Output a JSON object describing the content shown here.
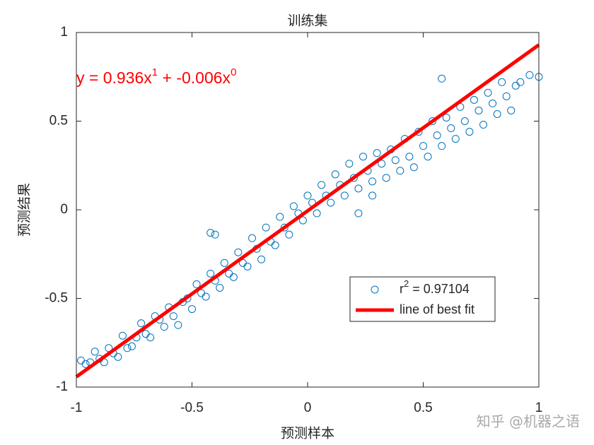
{
  "chart_data": {
    "type": "scatter",
    "title": "训练集",
    "xlabel": "预测样本",
    "ylabel": "预测结果",
    "xlim": [
      -1,
      1
    ],
    "ylim": [
      -1,
      1
    ],
    "xticks": [
      -1,
      -0.5,
      0,
      0.5,
      1
    ],
    "yticks": [
      -1,
      -0.5,
      0,
      0.5,
      1
    ],
    "annotation_parts": [
      "y = 0.936x",
      "1",
      " + -0.006x",
      "0"
    ],
    "annotation_color": "#ff0000",
    "legend_position": "lower right",
    "watermark": "知乎 @机器之语",
    "series": [
      {
        "type": "scatter",
        "name_parts": [
          "r",
          "2",
          " = 0.97104"
        ],
        "color": "#0072bd",
        "x": [
          -0.98,
          -0.96,
          -0.94,
          -0.92,
          -0.9,
          -0.88,
          -0.86,
          -0.84,
          -0.82,
          -0.8,
          -0.78,
          -0.76,
          -0.74,
          -0.72,
          -0.7,
          -0.68,
          -0.66,
          -0.64,
          -0.62,
          -0.6,
          -0.58,
          -0.56,
          -0.54,
          -0.52,
          -0.5,
          -0.48,
          -0.46,
          -0.44,
          -0.42,
          -0.4,
          -0.38,
          -0.36,
          -0.34,
          -0.32,
          -0.3,
          -0.28,
          -0.26,
          -0.24,
          -0.22,
          -0.2,
          -0.18,
          -0.16,
          -0.14,
          -0.12,
          -0.1,
          -0.08,
          -0.06,
          -0.04,
          -0.02,
          0,
          0.02,
          0.04,
          0.06,
          0.08,
          0.1,
          0.12,
          0.14,
          0.16,
          0.18,
          0.2,
          0.22,
          0.24,
          0.26,
          0.28,
          0.3,
          0.32,
          0.34,
          0.36,
          0.38,
          0.4,
          0.42,
          0.44,
          0.46,
          0.48,
          0.5,
          0.52,
          0.54,
          0.56,
          0.58,
          0.6,
          0.62,
          0.64,
          0.66,
          0.68,
          0.7,
          0.72,
          0.74,
          0.76,
          0.78,
          0.8,
          0.82,
          0.84,
          0.86,
          0.88,
          0.9,
          0.92,
          0.96,
          1,
          -0.42,
          0.22,
          0.58,
          0.28,
          -0.4
        ],
        "values": [
          -0.85,
          -0.87,
          -0.86,
          -0.8,
          -0.84,
          -0.86,
          -0.78,
          -0.81,
          -0.83,
          -0.71,
          -0.78,
          -0.77,
          -0.72,
          -0.64,
          -0.7,
          -0.72,
          -0.6,
          -0.62,
          -0.66,
          -0.55,
          -0.6,
          -0.65,
          -0.52,
          -0.5,
          -0.56,
          -0.42,
          -0.47,
          -0.49,
          -0.36,
          -0.4,
          -0.44,
          -0.3,
          -0.36,
          -0.38,
          -0.24,
          -0.3,
          -0.32,
          -0.16,
          -0.22,
          -0.28,
          -0.1,
          -0.18,
          -0.2,
          -0.04,
          -0.1,
          -0.14,
          0.02,
          -0.02,
          -0.06,
          0.08,
          0.04,
          -0.02,
          0.14,
          0.08,
          0.04,
          0.2,
          0.14,
          0.08,
          0.26,
          0.18,
          0.12,
          0.3,
          0.22,
          0.16,
          0.32,
          0.26,
          0.18,
          0.34,
          0.28,
          0.22,
          0.4,
          0.3,
          0.24,
          0.44,
          0.36,
          0.3,
          0.5,
          0.42,
          0.36,
          0.52,
          0.46,
          0.4,
          0.58,
          0.5,
          0.44,
          0.62,
          0.56,
          0.48,
          0.66,
          0.6,
          0.54,
          0.72,
          0.64,
          0.56,
          0.7,
          0.72,
          0.76,
          0.75,
          -0.13,
          -0.02,
          0.74,
          0.08,
          -0.14
        ]
      },
      {
        "type": "line",
        "name": "line of best fit",
        "color": "#ff0000",
        "x": [
          -1,
          1
        ],
        "values": [
          -0.942,
          0.93
        ]
      }
    ]
  }
}
